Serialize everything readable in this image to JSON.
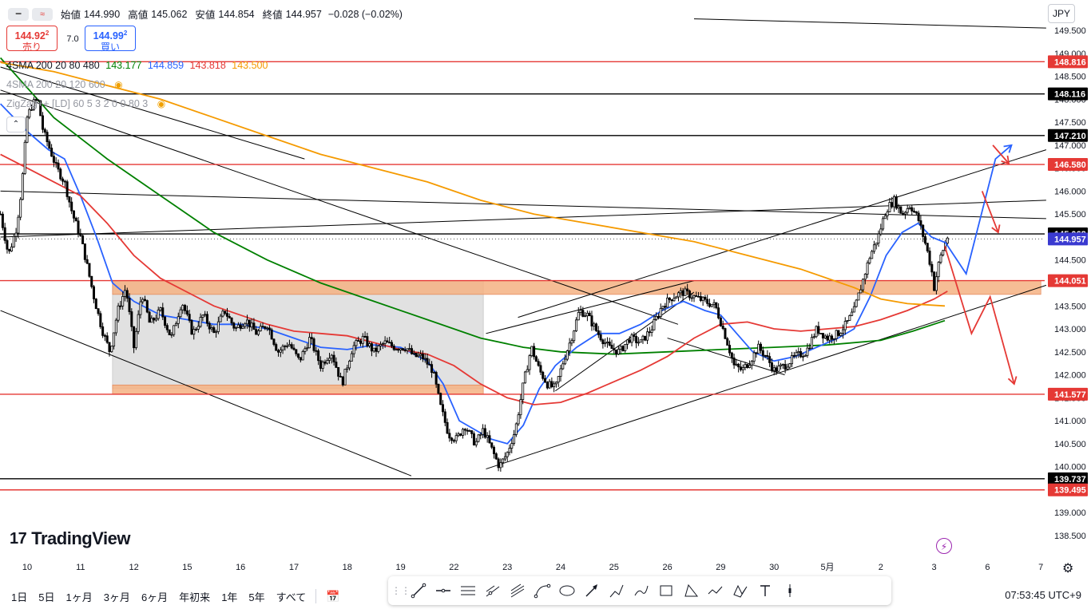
{
  "header": {
    "mini_buttons": [
      "━",
      "≈"
    ],
    "open_label": "始値",
    "open_value": "144.990",
    "high_label": "高値",
    "high_value": "145.062",
    "low_label": "安値",
    "low_value": "144.854",
    "close_label": "終値",
    "close_value": "144.957",
    "change": "−0.028 (−0.02%)"
  },
  "trade": {
    "sell_price": "144.92",
    "sell_price_sup": "2",
    "sell_label": "売り",
    "spread": "7.0",
    "buy_price": "144.99",
    "buy_price_sup": "2",
    "buy_label": "買い"
  },
  "indicators": [
    {
      "name": "4SMA 200 20 80 480",
      "values": [
        "143.177",
        "144.859",
        "143.818",
        "143.500"
      ],
      "value_colors": [
        "#008000",
        "#2962ff",
        "#e53935",
        "#f59a00"
      ],
      "muted": false
    },
    {
      "name": "4SMA 200 20 120 600",
      "values": [],
      "muted": true
    },
    {
      "name": "ZigZag++ [LD] 60 5 3 2 0 0 80 3",
      "values": [],
      "muted": true
    }
  ],
  "currency": "JPY",
  "chart_data": {
    "type": "candlestick",
    "symbol_currency": "JPY",
    "y_axis": {
      "range": [
        138.3,
        149.8
      ],
      "ticks": [
        "149.500",
        "149.000",
        "148.500",
        "148.000",
        "147.500",
        "147.000",
        "146.500",
        "146.000",
        "145.500",
        "145.000",
        "144.500",
        "144.000",
        "143.500",
        "143.000",
        "142.500",
        "142.000",
        "141.500",
        "141.000",
        "140.500",
        "140.000",
        "139.500",
        "139.000",
        "138.500"
      ]
    },
    "x_axis": {
      "tick_labels": [
        "10",
        "11",
        "12",
        "15",
        "16",
        "17",
        "18",
        "19",
        "22",
        "23",
        "24",
        "25",
        "26",
        "29",
        "30",
        "5月",
        "2",
        "3",
        "6",
        "7"
      ],
      "tick_positions": [
        0,
        1,
        2,
        3,
        4,
        5,
        6,
        7,
        8,
        9,
        10,
        11,
        12,
        13,
        14,
        15,
        16,
        17,
        18,
        19
      ]
    },
    "price_levels": [
      {
        "value": 148.816,
        "label": "148.816",
        "color": "#e53935"
      },
      {
        "value": 148.116,
        "label": "148.116",
        "color": "#000000"
      },
      {
        "value": 147.21,
        "label": "147.210",
        "color": "#000000"
      },
      {
        "value": 146.58,
        "label": "146.580",
        "color": "#e53935"
      },
      {
        "value": 145.068,
        "label": "145.068",
        "color": "#000000"
      },
      {
        "value": 144.957,
        "label": "144.957",
        "color": "#3a3ad0",
        "current": true
      },
      {
        "value": 144.051,
        "label": "144.051",
        "color": "#e53935"
      },
      {
        "value": 141.577,
        "label": "141.577",
        "color": "#e53935"
      },
      {
        "value": 139.737,
        "label": "139.737",
        "color": "#000000"
      },
      {
        "value": 139.495,
        "label": "139.495",
        "color": "#e53935"
      }
    ],
    "zones": [
      {
        "x": [
          1.6,
          8.55
        ],
        "y": [
          141.7,
          144.05
        ],
        "fill": "#dcdcdc"
      },
      {
        "x": [
          1.6,
          19.0
        ],
        "y": [
          143.75,
          144.05
        ],
        "fill": "#f4b183"
      },
      {
        "x": [
          1.6,
          8.55
        ],
        "y": [
          141.58,
          141.78
        ],
        "fill": "#f4b183"
      }
    ],
    "price_path": [
      [
        -0.5,
        145.5
      ],
      [
        -0.35,
        144.6
      ],
      [
        -0.2,
        145.2
      ],
      [
        -0.1,
        146.1
      ],
      [
        0.0,
        147.6
      ],
      [
        0.1,
        147.9
      ],
      [
        0.2,
        148.0
      ],
      [
        0.3,
        147.3
      ],
      [
        0.4,
        147.0
      ],
      [
        0.55,
        146.5
      ],
      [
        0.7,
        146.2
      ],
      [
        0.85,
        145.5
      ],
      [
        1.0,
        145.0
      ],
      [
        1.1,
        144.5
      ],
      [
        1.25,
        143.7
      ],
      [
        1.4,
        143.0
      ],
      [
        1.55,
        142.5
      ],
      [
        1.7,
        143.4
      ],
      [
        1.85,
        143.9
      ],
      [
        2.0,
        142.6
      ],
      [
        2.15,
        143.8
      ],
      [
        2.3,
        143.1
      ],
      [
        2.5,
        143.4
      ],
      [
        2.7,
        142.8
      ],
      [
        2.9,
        143.6
      ],
      [
        3.1,
        142.9
      ],
      [
        3.3,
        143.3
      ],
      [
        3.5,
        142.9
      ],
      [
        3.7,
        143.4
      ],
      [
        3.9,
        143.0
      ],
      [
        4.1,
        143.2
      ],
      [
        4.3,
        142.9
      ],
      [
        4.5,
        143.1
      ],
      [
        4.7,
        142.5
      ],
      [
        4.9,
        142.7
      ],
      [
        5.1,
        142.3
      ],
      [
        5.3,
        142.8
      ],
      [
        5.5,
        142.2
      ],
      [
        5.7,
        142.5
      ],
      [
        5.9,
        141.8
      ],
      [
        6.1,
        142.6
      ],
      [
        6.3,
        142.8
      ],
      [
        6.5,
        142.5
      ],
      [
        6.7,
        142.7
      ],
      [
        6.9,
        142.6
      ],
      [
        7.1,
        142.6
      ],
      [
        7.25,
        142.4
      ],
      [
        7.4,
        142.4
      ],
      [
        7.6,
        142.1
      ],
      [
        7.75,
        141.3
      ],
      [
        7.9,
        140.7
      ],
      [
        8.05,
        140.6
      ],
      [
        8.2,
        140.9
      ],
      [
        8.4,
        140.5
      ],
      [
        8.55,
        140.8
      ],
      [
        8.7,
        140.4
      ],
      [
        8.85,
        140.0
      ],
      [
        9.0,
        140.3
      ],
      [
        9.15,
        140.8
      ],
      [
        9.3,
        141.8
      ],
      [
        9.45,
        142.6
      ],
      [
        9.6,
        142.1
      ],
      [
        9.75,
        141.8
      ],
      [
        9.9,
        141.7
      ],
      [
        10.05,
        142.3
      ],
      [
        10.2,
        142.8
      ],
      [
        10.35,
        143.4
      ],
      [
        10.5,
        143.3
      ],
      [
        10.7,
        142.9
      ],
      [
        10.9,
        142.6
      ],
      [
        11.1,
        142.5
      ],
      [
        11.3,
        142.8
      ],
      [
        11.5,
        142.7
      ],
      [
        11.7,
        143.0
      ],
      [
        11.9,
        143.5
      ],
      [
        12.1,
        143.7
      ],
      [
        12.3,
        143.8
      ],
      [
        12.5,
        143.7
      ],
      [
        12.7,
        143.6
      ],
      [
        12.9,
        143.5
      ],
      [
        13.1,
        142.8
      ],
      [
        13.25,
        142.2
      ],
      [
        13.4,
        142.1
      ],
      [
        13.55,
        142.3
      ],
      [
        13.7,
        142.6
      ],
      [
        13.85,
        142.4
      ],
      [
        14.0,
        142.1
      ],
      [
        14.2,
        142.2
      ],
      [
        14.4,
        142.4
      ],
      [
        14.6,
        142.5
      ],
      [
        14.8,
        143.0
      ],
      [
        15.0,
        142.8
      ],
      [
        15.2,
        142.9
      ],
      [
        15.35,
        143.1
      ],
      [
        15.5,
        143.4
      ],
      [
        15.65,
        144.0
      ],
      [
        15.8,
        144.6
      ],
      [
        15.95,
        145.0
      ],
      [
        16.1,
        145.6
      ],
      [
        16.25,
        145.8
      ],
      [
        16.4,
        145.5
      ],
      [
        16.55,
        145.7
      ],
      [
        16.7,
        145.4
      ],
      [
        16.85,
        144.8
      ],
      [
        16.95,
        144.3
      ],
      [
        17.0,
        143.9
      ],
      [
        17.1,
        144.5
      ],
      [
        17.25,
        145.0
      ]
    ],
    "series": [
      {
        "name": "143.177",
        "color": "#008000",
        "points": [
          [
            -0.5,
            148.9
          ],
          [
            0.5,
            147.6
          ],
          [
            1.5,
            146.7
          ],
          [
            2.5,
            145.9
          ],
          [
            3.5,
            145.1
          ],
          [
            4.5,
            144.5
          ],
          [
            5.5,
            144.0
          ],
          [
            6.5,
            143.6
          ],
          [
            7.5,
            143.2
          ],
          [
            8.5,
            142.8
          ],
          [
            9.3,
            142.6
          ],
          [
            10.0,
            142.5
          ],
          [
            11.0,
            142.45
          ],
          [
            12.0,
            142.5
          ],
          [
            13.0,
            142.55
          ],
          [
            14.0,
            142.6
          ],
          [
            15.0,
            142.65
          ],
          [
            16.0,
            142.75
          ],
          [
            16.6,
            142.95
          ],
          [
            17.2,
            143.18
          ]
        ]
      },
      {
        "name": "144.859",
        "color": "#2962ff",
        "points": [
          [
            -0.5,
            147.9
          ],
          [
            0.0,
            147.3
          ],
          [
            0.4,
            146.9
          ],
          [
            0.7,
            146.7
          ],
          [
            1.0,
            145.9
          ],
          [
            1.3,
            145.0
          ],
          [
            1.6,
            144.0
          ],
          [
            2.0,
            143.6
          ],
          [
            2.5,
            143.3
          ],
          [
            3.0,
            143.2
          ],
          [
            3.5,
            143.1
          ],
          [
            4.0,
            143.1
          ],
          [
            4.5,
            143.0
          ],
          [
            5.0,
            142.8
          ],
          [
            5.5,
            142.6
          ],
          [
            6.0,
            142.55
          ],
          [
            6.5,
            142.65
          ],
          [
            7.0,
            142.6
          ],
          [
            7.5,
            142.3
          ],
          [
            7.8,
            141.8
          ],
          [
            8.1,
            141.0
          ],
          [
            8.4,
            140.8
          ],
          [
            8.7,
            140.6
          ],
          [
            9.0,
            140.5
          ],
          [
            9.3,
            140.9
          ],
          [
            9.6,
            141.7
          ],
          [
            9.9,
            142.2
          ],
          [
            10.3,
            142.6
          ],
          [
            10.7,
            142.9
          ],
          [
            11.1,
            142.9
          ],
          [
            11.5,
            143.1
          ],
          [
            11.9,
            143.4
          ],
          [
            12.3,
            143.6
          ],
          [
            12.7,
            143.4
          ],
          [
            13.0,
            143.3
          ],
          [
            13.3,
            142.9
          ],
          [
            13.6,
            142.5
          ],
          [
            14.0,
            142.3
          ],
          [
            14.4,
            142.4
          ],
          [
            14.8,
            142.6
          ],
          [
            15.2,
            142.8
          ],
          [
            15.5,
            143.0
          ],
          [
            15.8,
            143.7
          ],
          [
            16.1,
            144.6
          ],
          [
            16.4,
            145.1
          ],
          [
            16.7,
            145.3
          ],
          [
            16.95,
            145.0
          ],
          [
            17.25,
            144.86
          ]
        ]
      },
      {
        "name": "143.818",
        "color": "#e53935",
        "points": [
          [
            -0.5,
            146.8
          ],
          [
            0.0,
            146.5
          ],
          [
            0.5,
            146.2
          ],
          [
            1.0,
            145.9
          ],
          [
            1.5,
            145.3
          ],
          [
            2.0,
            144.6
          ],
          [
            2.5,
            144.1
          ],
          [
            3.0,
            143.8
          ],
          [
            3.5,
            143.5
          ],
          [
            4.0,
            143.3
          ],
          [
            4.5,
            143.1
          ],
          [
            5.0,
            142.95
          ],
          [
            5.5,
            142.9
          ],
          [
            6.0,
            142.85
          ],
          [
            6.5,
            142.7
          ],
          [
            7.0,
            142.55
          ],
          [
            7.5,
            142.45
          ],
          [
            8.0,
            142.2
          ],
          [
            8.5,
            141.8
          ],
          [
            9.0,
            141.5
          ],
          [
            9.5,
            141.35
          ],
          [
            10.0,
            141.4
          ],
          [
            10.5,
            141.6
          ],
          [
            11.0,
            141.85
          ],
          [
            11.5,
            142.1
          ],
          [
            12.0,
            142.4
          ],
          [
            12.5,
            142.8
          ],
          [
            13.0,
            143.1
          ],
          [
            13.5,
            143.15
          ],
          [
            14.0,
            143.0
          ],
          [
            14.5,
            142.95
          ],
          [
            15.0,
            143.0
          ],
          [
            15.5,
            143.05
          ],
          [
            16.0,
            143.2
          ],
          [
            16.5,
            143.4
          ],
          [
            17.0,
            143.65
          ],
          [
            17.25,
            143.82
          ]
        ]
      },
      {
        "name": "143.500",
        "color": "#f59a00",
        "points": [
          [
            -0.5,
            148.8
          ],
          [
            0.5,
            148.6
          ],
          [
            1.5,
            148.3
          ],
          [
            2.5,
            148.0
          ],
          [
            3.5,
            147.6
          ],
          [
            4.5,
            147.2
          ],
          [
            5.5,
            146.8
          ],
          [
            6.5,
            146.5
          ],
          [
            7.5,
            146.2
          ],
          [
            8.5,
            145.8
          ],
          [
            9.5,
            145.5
          ],
          [
            10.5,
            145.3
          ],
          [
            11.5,
            145.1
          ],
          [
            12.5,
            144.9
          ],
          [
            13.5,
            144.6
          ],
          [
            14.5,
            144.3
          ],
          [
            15.5,
            143.9
          ],
          [
            16.0,
            143.65
          ],
          [
            16.5,
            143.55
          ],
          [
            17.2,
            143.5
          ]
        ]
      }
    ],
    "forecast_arrows": [
      {
        "color": "#2962ff",
        "points": [
          [
            17.2,
            144.9
          ],
          [
            17.6,
            144.2
          ],
          [
            18.15,
            146.7
          ],
          [
            18.45,
            147.0
          ]
        ],
        "head": "up"
      },
      {
        "color": "#e53935",
        "points": [
          [
            17.9,
            146.0
          ],
          [
            18.2,
            145.1
          ]
        ],
        "head": "down"
      },
      {
        "color": "#e53935",
        "points": [
          [
            18.1,
            147.0
          ],
          [
            18.4,
            146.6
          ]
        ],
        "head": "down"
      },
      {
        "color": "#e53935",
        "points": [
          [
            17.2,
            144.8
          ],
          [
            17.7,
            142.9
          ],
          [
            18.05,
            143.7
          ],
          [
            18.5,
            141.8
          ]
        ],
        "head": "down"
      }
    ]
  },
  "watermark": {
    "logo_text": "TradingView",
    "logo_mark": "17"
  },
  "time_ranges": [
    "1日",
    "5日",
    "1ヶ月",
    "3ヶ月",
    "6ヶ月",
    "年初来",
    "1年",
    "5年",
    "すべて"
  ],
  "clock": "07:53:45 UTC+9",
  "drawing_tools": [
    "trend-line",
    "horizontal-line",
    "parallel-channel",
    "pitchfork",
    "gann-fan",
    "curve",
    "ellipse",
    "arrow",
    "brush",
    "path",
    "rectangle",
    "triangle",
    "polyline",
    "pattern",
    "text",
    "marker"
  ]
}
